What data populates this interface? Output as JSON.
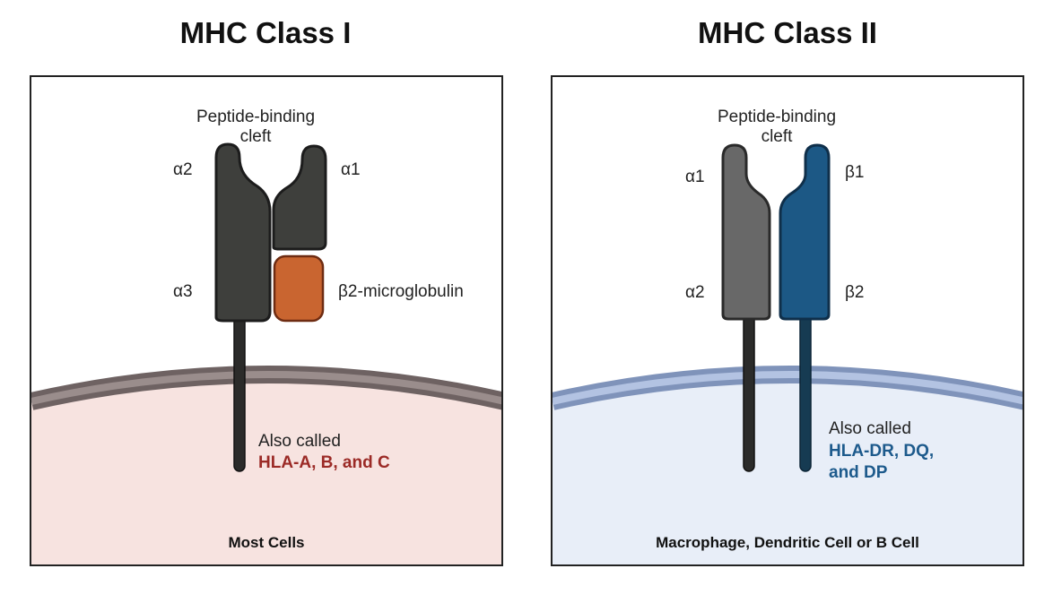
{
  "class1": {
    "title": "MHC Class I",
    "cleft": "Peptide-binding\ncleft",
    "a2": "α2",
    "a1": "α1",
    "a3": "α3",
    "b2m": "β2-microglobulin",
    "also": "Also called",
    "names": "HLA-A, B, and C",
    "footer": "Most Cells"
  },
  "class2": {
    "title": "MHC Class II",
    "cleft": "Peptide-binding\ncleft",
    "a1": "α1",
    "b1": "β1",
    "a2": "α2",
    "b2": "β2",
    "also": "Also called",
    "names": "HLA-DR, DQ,\nand DP",
    "footer": "Macrophage, Dendritic Cell or B Cell"
  },
  "colors": {
    "cell1": "#f7e3e0",
    "membrane1": "#8e8180",
    "cell2": "#e8eef8",
    "membrane2": "#a8b8d8",
    "dark_chain": "#3e3f3c",
    "b2m": "#c96530",
    "gray_chain": "#686868",
    "blue_chain": "#1c5885"
  }
}
